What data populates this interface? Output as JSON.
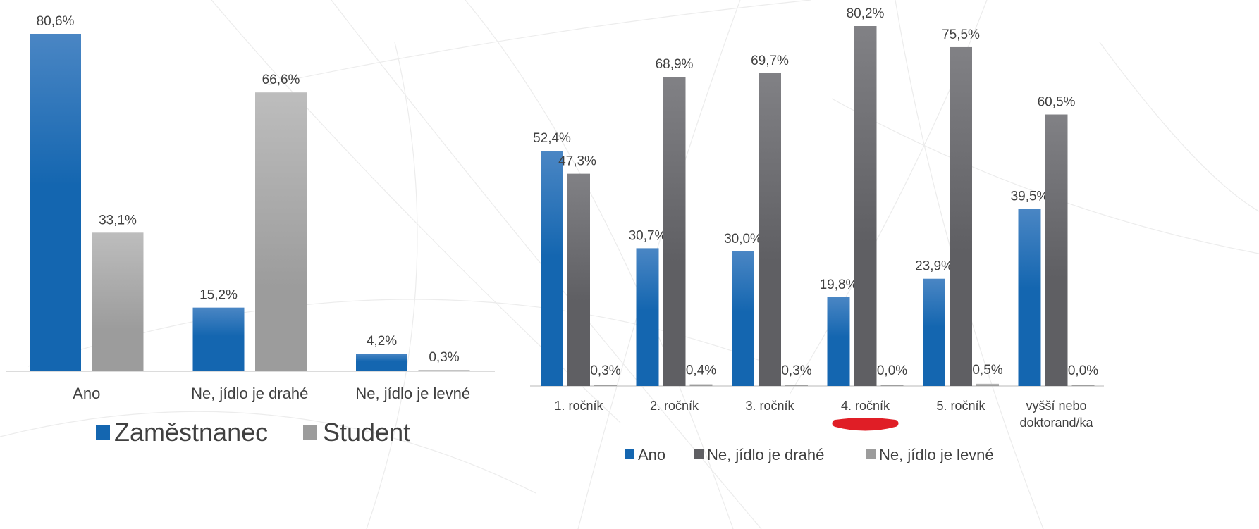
{
  "colors": {
    "blue": "#1466b0",
    "blue_light": "#4a86c4",
    "gray_dark": "#5f5f63",
    "gray_dark_light": "#818185",
    "gray_light": "#9c9c9c",
    "gray_light_light": "#bdbdbd",
    "highlight": "#e01e26"
  },
  "chart_data": [
    {
      "type": "bar",
      "title": "",
      "categories": [
        "Ano",
        "Ne, jídlo je drahé",
        "Ne, jídlo je levné"
      ],
      "series": [
        {
          "name": "Zaměstnanec",
          "values": [
            80.6,
            15.2,
            4.2
          ],
          "labels": [
            "80,6%",
            "15,2%",
            "4,2%"
          ]
        },
        {
          "name": "Student",
          "values": [
            33.1,
            66.6,
            0.3
          ],
          "labels": [
            "33,1%",
            "66,6%",
            "0,3%"
          ]
        }
      ],
      "ylim": [
        0,
        80.6
      ],
      "grid": false,
      "legend_position": "bottom"
    },
    {
      "type": "bar",
      "title": "",
      "categories": [
        "1. ročník",
        "2. ročník",
        "3. ročník",
        "4. ročník",
        "5. ročník",
        "vyšší nebo doktorand/ka"
      ],
      "category_lines": [
        [
          "1. ročník"
        ],
        [
          "2. ročník"
        ],
        [
          "3. ročník"
        ],
        [
          "4. ročník"
        ],
        [
          "5. ročník"
        ],
        [
          "vyšší nebo",
          "doktorand/ka"
        ]
      ],
      "series": [
        {
          "name": "Ano",
          "values": [
            52.4,
            30.7,
            30.0,
            19.8,
            23.9,
            39.5
          ],
          "labels": [
            "52,4%",
            "30,7%",
            "30,0%",
            "19,8%",
            "23,9%",
            "39,5%"
          ]
        },
        {
          "name": "Ne, jídlo je drahé",
          "values": [
            47.3,
            68.9,
            69.7,
            80.2,
            75.5,
            60.5
          ],
          "labels": [
            "47,3%",
            "68,9%",
            "69,7%",
            "80,2%",
            "75,5%",
            "60,5%"
          ]
        },
        {
          "name": "Ne, jídlo je levné",
          "values": [
            0.3,
            0.4,
            0.3,
            0.0,
            0.5,
            0.0
          ],
          "labels": [
            "0,3%",
            "0,4%",
            "0,3%",
            "0,0%",
            "0,5%",
            "0,0%"
          ]
        }
      ],
      "ylim": [
        0,
        80.2
      ],
      "grid": false,
      "legend_position": "bottom",
      "highlighted_category": "4. ročník"
    }
  ]
}
